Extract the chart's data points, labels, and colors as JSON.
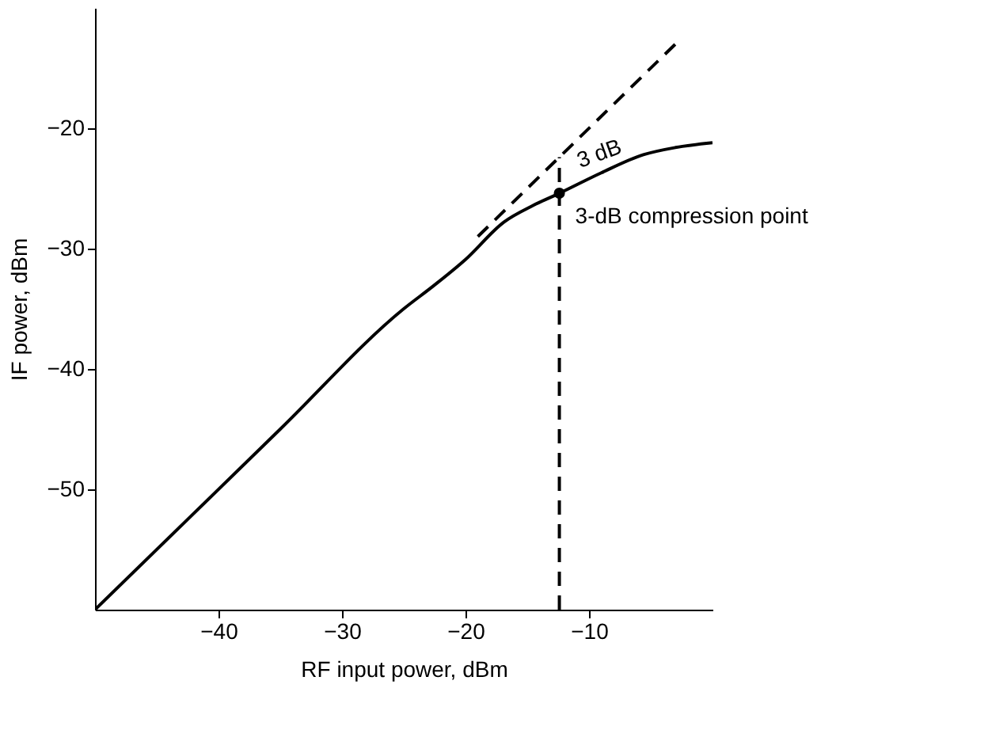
{
  "chart_data": {
    "type": "line",
    "xlabel": "RF input power, dBm",
    "ylabel": "IF power, dBm",
    "xlim": [
      -50,
      0
    ],
    "ylim": [
      -60,
      -10
    ],
    "xticks": [
      -40,
      -30,
      -20,
      -10
    ],
    "yticks": [
      -50,
      -40,
      -30,
      -20
    ],
    "grid": false,
    "series": [
      {
        "color": "#000000",
        "line_style": "solid",
        "x": [
          -50,
          -35,
          -25,
          -22.6,
          -20,
          -16.9,
          -14.5,
          -12.4,
          -9,
          -5.6,
          -3,
          0
        ],
        "values": [
          -60,
          -45,
          -35,
          -33.1,
          -30.9,
          -27.8,
          -26.4,
          -25.4,
          -23.7,
          -22.2,
          -21.6,
          -21.2
        ]
      },
      {
        "color": "#000000",
        "line_style": "dashed",
        "x": [
          -19,
          -2.6
        ],
        "values": [
          -29,
          -12.6
        ]
      },
      {
        "color": "#000000",
        "line_style": "dashed",
        "x": [
          -12.4,
          -12.4
        ],
        "values": [
          -60,
          -22.4
        ]
      },
      {
        "type": "scatter",
        "color": "#000000",
        "marker": "circle",
        "x": [
          -12.4
        ],
        "values": [
          -25.4
        ]
      }
    ],
    "annotations": [
      {
        "text": "3 dB",
        "x": -12.4,
        "y": -22.4
      },
      {
        "text": "3-dB compression point",
        "x": -12.4,
        "y": -25.4
      }
    ]
  }
}
